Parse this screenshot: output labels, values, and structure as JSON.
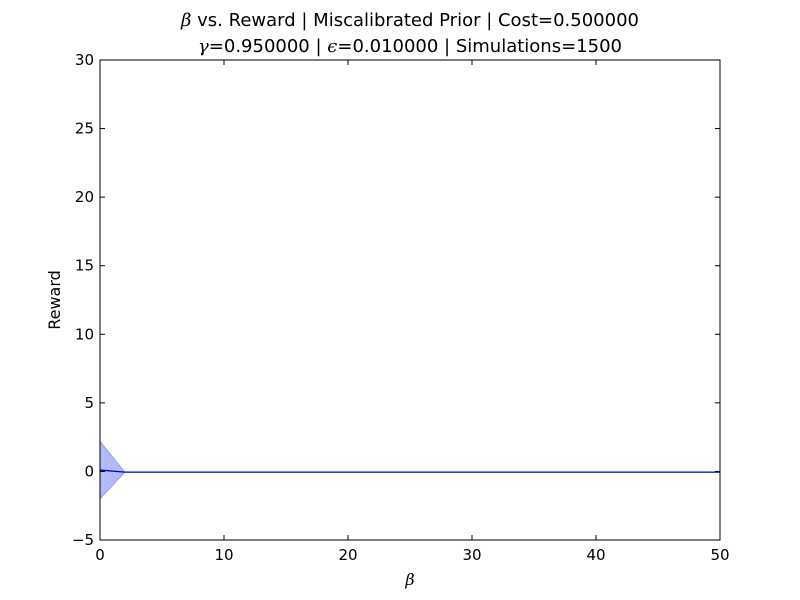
{
  "chart_data": {
    "type": "line",
    "title_line1": {
      "beta_symbol": "β",
      "rest": " vs. Reward | Miscalibrated Prior | Cost=0.500000"
    },
    "title_line2": {
      "gamma_symbol": "γ",
      "after_gamma": "=0.950000 | ",
      "epsilon_symbol": "ϵ",
      "after_epsilon": "=0.010000 | Simulations=1500"
    },
    "xlabel": "β",
    "ylabel": "Reward",
    "xlim": [
      0,
      50
    ],
    "ylim": [
      -5,
      30
    ],
    "x_ticks": [
      0,
      10,
      20,
      30,
      40,
      50
    ],
    "y_ticks": [
      -5,
      0,
      5,
      10,
      15,
      20,
      25,
      30
    ],
    "x_tick_labels": [
      "0",
      "10",
      "20",
      "30",
      "40",
      "50"
    ],
    "y_tick_labels": [
      "−5",
      "0",
      "5",
      "10",
      "15",
      "20",
      "25",
      "30"
    ],
    "grid": false,
    "series": [
      {
        "color": "#0000cc",
        "x": [
          0,
          2,
          50
        ],
        "y": [
          0.1,
          -0.05,
          -0.05
        ],
        "band_lower": [
          -2.0,
          -0.05,
          -0.05
        ],
        "band_upper": [
          2.2,
          -0.05,
          -0.05
        ],
        "band_color": "#6677ee"
      }
    ]
  }
}
